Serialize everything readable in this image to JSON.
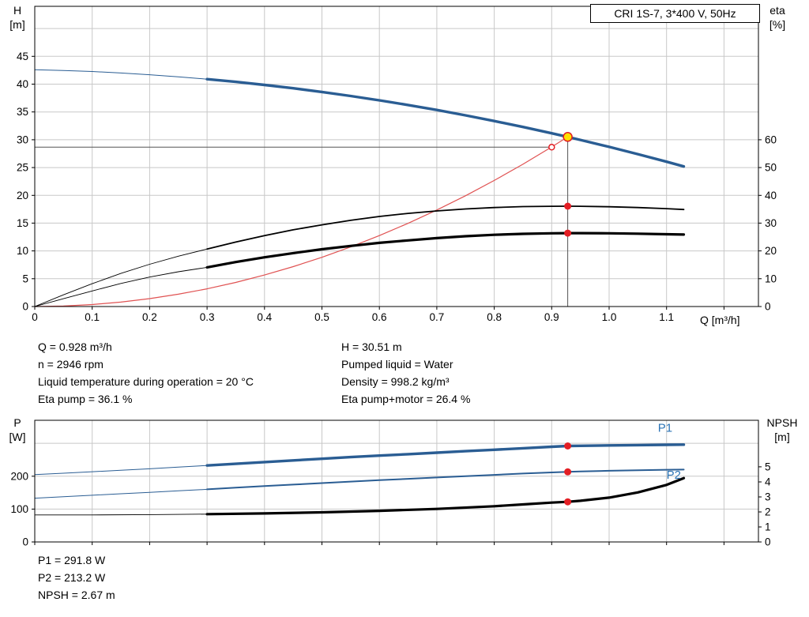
{
  "colors": {
    "curve_blue": "#2a5d93",
    "label_blue": "#2e75b6",
    "curve_black": "#000000",
    "system_red": "#e05252",
    "dot_red": "#e31e24",
    "duty_yellow": "#ffe000",
    "grid": "#c8c8c8",
    "frame": "#000000",
    "guide": "#555555"
  },
  "results": {
    "left": [
      "Q = 0.928 m³/h",
      "n = 2946 rpm",
      "Liquid temperature during operation = 20 °C",
      "Eta pump = 36.1 %"
    ],
    "right": [
      "H = 30.51 m",
      "Pumped liquid = Water",
      "Density = 998.2 kg/m³",
      "Eta pump+motor = 26.4 %"
    ],
    "bottom": [
      "P1 = 291.8 W",
      "P2 = 213.2 W",
      "NPSH = 2.67 m"
    ]
  },
  "chart_data": [
    {
      "type": "line",
      "title": "CRI 1S-7, 3*400 V, 50Hz",
      "x": {
        "label": "Q [m³/h]",
        "min": 0,
        "max": 1.26,
        "ticks": [
          [
            0,
            "0"
          ],
          [
            0.1,
            "0.1"
          ],
          [
            0.2,
            "0.2"
          ],
          [
            0.3,
            "0.3"
          ],
          [
            0.4,
            "0.4"
          ],
          [
            0.5,
            "0.5"
          ],
          [
            0.6,
            "0.6"
          ],
          [
            0.7,
            "0.7"
          ],
          [
            0.8,
            "0.8"
          ],
          [
            0.9,
            "0.9"
          ],
          [
            1.0,
            "1.0"
          ],
          [
            1.1,
            "1.1"
          ],
          [
            1.2,
            ""
          ]
        ]
      },
      "y_left": {
        "name": "H",
        "unit": "[m]",
        "min": 0,
        "max": 54,
        "ticks": [
          [
            0,
            "0"
          ],
          [
            5,
            "5"
          ],
          [
            10,
            "10"
          ],
          [
            15,
            "15"
          ],
          [
            20,
            "20"
          ],
          [
            25,
            "25"
          ],
          [
            30,
            "30"
          ],
          [
            35,
            "35"
          ],
          [
            40,
            "40"
          ],
          [
            45,
            "45"
          ]
        ],
        "grid": [
          5,
          10,
          15,
          20,
          25,
          30,
          35,
          40,
          45,
          50
        ]
      },
      "y_right": {
        "name": "eta",
        "unit": "[%]",
        "min": 0,
        "max": 108,
        "ticks": [
          [
            0,
            "0"
          ],
          [
            10,
            "10"
          ],
          [
            20,
            "20"
          ],
          [
            30,
            "30"
          ],
          [
            40,
            "40"
          ],
          [
            50,
            "50"
          ],
          [
            60,
            "60"
          ]
        ]
      },
      "guides": [
        {
          "type": "h",
          "y": 28.66,
          "x1": 0,
          "x2": 0.9
        },
        {
          "type": "v",
          "x": 0.928,
          "y1": 0,
          "y2": 30.51
        }
      ],
      "series": [
        {
          "name": "system-curve",
          "axis": "left",
          "color": "#e05252",
          "w2": 1.2,
          "points": [
            [
              0,
              0
            ],
            [
              0.05,
              0.09
            ],
            [
              0.1,
              0.35
            ],
            [
              0.15,
              0.8
            ],
            [
              0.2,
              1.42
            ],
            [
              0.25,
              2.21
            ],
            [
              0.3,
              3.19
            ],
            [
              0.35,
              4.34
            ],
            [
              0.4,
              5.67
            ],
            [
              0.45,
              7.17
            ],
            [
              0.5,
              8.86
            ],
            [
              0.55,
              10.72
            ],
            [
              0.6,
              12.76
            ],
            [
              0.65,
              14.97
            ],
            [
              0.7,
              17.36
            ],
            [
              0.75,
              19.93
            ],
            [
              0.8,
              22.68
            ],
            [
              0.85,
              25.6
            ],
            [
              0.9,
              28.7
            ],
            [
              0.928,
              30.51
            ]
          ]
        },
        {
          "name": "eta-pump",
          "axis": "right",
          "color": "#000000",
          "split": 0.3,
          "w1": 0.9,
          "w2": 1.8,
          "points": [
            [
              0,
              0
            ],
            [
              0.05,
              4.2
            ],
            [
              0.1,
              8.2
            ],
            [
              0.15,
              11.9
            ],
            [
              0.2,
              15.2
            ],
            [
              0.25,
              18.1
            ],
            [
              0.3,
              20.7
            ],
            [
              0.35,
              23.2
            ],
            [
              0.4,
              25.5
            ],
            [
              0.45,
              27.6
            ],
            [
              0.5,
              29.4
            ],
            [
              0.55,
              31.0
            ],
            [
              0.6,
              32.4
            ],
            [
              0.65,
              33.5
            ],
            [
              0.7,
              34.4
            ],
            [
              0.75,
              35.1
            ],
            [
              0.8,
              35.6
            ],
            [
              0.85,
              35.95
            ],
            [
              0.9,
              36.08
            ],
            [
              0.928,
              36.1
            ],
            [
              0.95,
              36.08
            ],
            [
              1.0,
              35.9
            ],
            [
              1.05,
              35.6
            ],
            [
              1.1,
              35.2
            ],
            [
              1.13,
              34.9
            ]
          ]
        },
        {
          "name": "eta-pump-motor",
          "axis": "right",
          "color": "#000000",
          "split": 0.3,
          "w1": 0.9,
          "w2": 3.2,
          "points": [
            [
              0,
              0
            ],
            [
              0.05,
              2.8
            ],
            [
              0.1,
              5.6
            ],
            [
              0.15,
              8.3
            ],
            [
              0.2,
              10.6
            ],
            [
              0.25,
              12.5
            ],
            [
              0.3,
              14.1
            ],
            [
              0.35,
              16.0
            ],
            [
              0.4,
              17.7
            ],
            [
              0.45,
              19.2
            ],
            [
              0.5,
              20.6
            ],
            [
              0.55,
              21.8
            ],
            [
              0.6,
              22.9
            ],
            [
              0.65,
              23.8
            ],
            [
              0.7,
              24.6
            ],
            [
              0.75,
              25.3
            ],
            [
              0.8,
              25.8
            ],
            [
              0.85,
              26.15
            ],
            [
              0.9,
              26.35
            ],
            [
              0.928,
              26.4
            ],
            [
              0.95,
              26.4
            ],
            [
              1.0,
              26.35
            ],
            [
              1.05,
              26.2
            ],
            [
              1.1,
              26.0
            ],
            [
              1.13,
              25.9
            ]
          ]
        },
        {
          "name": "pump-head",
          "axis": "left",
          "color": "#2a5d93",
          "split": 0.3,
          "w1": 1,
          "w2": 3.4,
          "points": [
            [
              0,
              42.6
            ],
            [
              0.05,
              42.46
            ],
            [
              0.1,
              42.27
            ],
            [
              0.15,
              42.01
            ],
            [
              0.2,
              41.7
            ],
            [
              0.25,
              41.33
            ],
            [
              0.3,
              40.9
            ],
            [
              0.35,
              40.41
            ],
            [
              0.4,
              39.86
            ],
            [
              0.45,
              39.26
            ],
            [
              0.5,
              38.59
            ],
            [
              0.55,
              37.87
            ],
            [
              0.6,
              37.09
            ],
            [
              0.65,
              36.25
            ],
            [
              0.7,
              35.35
            ],
            [
              0.75,
              34.39
            ],
            [
              0.8,
              33.37
            ],
            [
              0.85,
              32.3
            ],
            [
              0.9,
              31.16
            ],
            [
              0.928,
              30.51
            ],
            [
              0.95,
              29.97
            ],
            [
              1.0,
              28.72
            ],
            [
              1.05,
              27.41
            ],
            [
              1.1,
              26.05
            ],
            [
              1.13,
              25.19
            ]
          ]
        }
      ],
      "markers": [
        {
          "name": "system-set-point",
          "x": 0.9,
          "y": 28.66,
          "axis": "left",
          "r": 3.5,
          "fill": "#ffffff",
          "stroke": "#e31e24"
        },
        {
          "name": "eta-pump-point",
          "x": 0.928,
          "y": 36.1,
          "axis": "right",
          "r": 4.5,
          "fill": "#e31e24"
        },
        {
          "name": "eta-pump-motor-point",
          "x": 0.928,
          "y": 26.4,
          "axis": "right",
          "r": 4.5,
          "fill": "#e31e24"
        },
        {
          "name": "duty-point",
          "x": 0.928,
          "y": 30.51,
          "axis": "left",
          "r": 5.5,
          "fill": "#ffe000",
          "stroke": "#e31e24",
          "interactable": true
        }
      ],
      "labels": []
    },
    {
      "type": "line",
      "title": "",
      "x": {
        "label": "",
        "min": 0,
        "max": 1.26,
        "ticks": [
          [
            0,
            ""
          ],
          [
            0.1,
            ""
          ],
          [
            0.2,
            ""
          ],
          [
            0.3,
            ""
          ],
          [
            0.4,
            ""
          ],
          [
            0.5,
            ""
          ],
          [
            0.6,
            ""
          ],
          [
            0.7,
            ""
          ],
          [
            0.8,
            ""
          ],
          [
            0.9,
            ""
          ],
          [
            1.0,
            ""
          ],
          [
            1.1,
            ""
          ],
          [
            1.2,
            ""
          ]
        ]
      },
      "y_left": {
        "name": "P",
        "unit": "[W]",
        "min": 0,
        "max": 370,
        "ticks": [
          [
            0,
            "0"
          ],
          [
            100,
            "100"
          ],
          [
            200,
            "200"
          ]
        ],
        "grid": [
          100,
          200,
          300
        ]
      },
      "y_right": {
        "name": "NPSH",
        "unit": "[m]",
        "min": 0,
        "max": 8.1,
        "ticks": [
          [
            0,
            "0"
          ],
          [
            1,
            "1"
          ],
          [
            2,
            "2"
          ],
          [
            3,
            "3"
          ],
          [
            4,
            "4"
          ],
          [
            5,
            "5"
          ]
        ]
      },
      "guides": [],
      "series": [
        {
          "name": "npsh",
          "axis": "right",
          "color": "#000000",
          "split": 0.3,
          "w1": 0.9,
          "w2": 3.2,
          "points": [
            [
              0,
              1.8
            ],
            [
              0.1,
              1.8
            ],
            [
              0.2,
              1.82
            ],
            [
              0.3,
              1.85
            ],
            [
              0.4,
              1.9
            ],
            [
              0.5,
              1.97
            ],
            [
              0.6,
              2.07
            ],
            [
              0.7,
              2.2
            ],
            [
              0.8,
              2.38
            ],
            [
              0.85,
              2.5
            ],
            [
              0.9,
              2.62
            ],
            [
              0.928,
              2.67
            ],
            [
              0.95,
              2.74
            ],
            [
              1.0,
              2.95
            ],
            [
              1.05,
              3.3
            ],
            [
              1.1,
              3.8
            ],
            [
              1.13,
              4.25
            ]
          ]
        },
        {
          "name": "p2",
          "axis": "left",
          "color": "#2a5d93",
          "split": 0.3,
          "w1": 1,
          "w2": 2,
          "points": [
            [
              0,
              133
            ],
            [
              0.05,
              137.5
            ],
            [
              0.1,
              142
            ],
            [
              0.15,
              146.5
            ],
            [
              0.2,
              151
            ],
            [
              0.25,
              155.5
            ],
            [
              0.3,
              160
            ],
            [
              0.35,
              165
            ],
            [
              0.4,
              170
            ],
            [
              0.45,
              174.5
            ],
            [
              0.5,
              179
            ],
            [
              0.55,
              183.5
            ],
            [
              0.6,
              188
            ],
            [
              0.65,
              192
            ],
            [
              0.7,
              196
            ],
            [
              0.75,
              200
            ],
            [
              0.8,
              204
            ],
            [
              0.85,
              208
            ],
            [
              0.9,
              211.5
            ],
            [
              0.928,
              213.2
            ],
            [
              0.95,
              214.5
            ],
            [
              1.0,
              216.5
            ],
            [
              1.05,
              218
            ],
            [
              1.1,
              219.5
            ],
            [
              1.13,
              220
            ]
          ]
        },
        {
          "name": "p1",
          "axis": "left",
          "color": "#2a5d93",
          "split": 0.3,
          "w1": 1,
          "w2": 3.4,
          "points": [
            [
              0,
              205
            ],
            [
              0.05,
              209
            ],
            [
              0.1,
              213.5
            ],
            [
              0.15,
              218
            ],
            [
              0.2,
              222.5
            ],
            [
              0.25,
              227.5
            ],
            [
              0.3,
              232.5
            ],
            [
              0.35,
              237.5
            ],
            [
              0.4,
              243
            ],
            [
              0.45,
              248
            ],
            [
              0.5,
              253
            ],
            [
              0.55,
              258
            ],
            [
              0.6,
              262.5
            ],
            [
              0.65,
              267
            ],
            [
              0.7,
              271.5
            ],
            [
              0.75,
              276
            ],
            [
              0.8,
              280.5
            ],
            [
              0.85,
              285
            ],
            [
              0.9,
              289.5
            ],
            [
              0.928,
              291.8
            ],
            [
              0.95,
              292.5
            ],
            [
              1.0,
              293.5
            ],
            [
              1.05,
              294.5
            ],
            [
              1.1,
              295.5
            ],
            [
              1.13,
              296
            ]
          ]
        }
      ],
      "markers": [
        {
          "name": "p1-point",
          "x": 0.928,
          "y": 291.8,
          "axis": "left",
          "r": 4.5,
          "fill": "#e31e24"
        },
        {
          "name": "p2-point",
          "x": 0.928,
          "y": 213.2,
          "axis": "left",
          "r": 4.5,
          "fill": "#e31e24"
        },
        {
          "name": "npsh-point",
          "x": 0.928,
          "y": 2.67,
          "axis": "right",
          "r": 4.5,
          "fill": "#e31e24"
        }
      ],
      "labels": [
        {
          "text": "P1",
          "x": 1.085,
          "y": 335,
          "axis": "left"
        },
        {
          "text": "P2",
          "x": 1.1,
          "y": 192,
          "axis": "left"
        }
      ]
    }
  ]
}
